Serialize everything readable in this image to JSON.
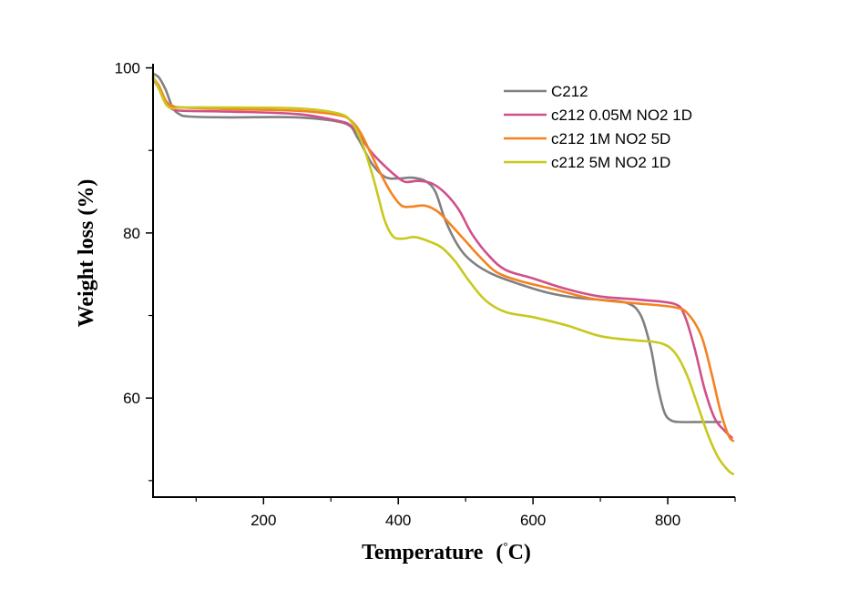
{
  "chart_data": {
    "type": "line",
    "title": "",
    "xlabel": "Temperature (°C)",
    "xlabel_main": "Temperature",
    "xlabel_unit_open": "(",
    "xlabel_unit_deg": "°",
    "xlabel_unit_rest": "C)",
    "ylabel": "Weight loss (%)",
    "xlim": [
      36,
      900
    ],
    "ylim": [
      48,
      100.5
    ],
    "x_major_ticks": [
      200,
      400,
      600,
      800
    ],
    "x_minor_ticks": [
      100,
      300,
      500,
      700,
      900
    ],
    "y_major_ticks": [
      60,
      80,
      100
    ],
    "y_minor_ticks": [
      50,
      70,
      90
    ],
    "x_tick_labels": [
      "200",
      "400",
      "600",
      "800"
    ],
    "y_tick_labels": [
      "60",
      "80",
      "100"
    ],
    "grid": false,
    "legend_position": "top-right",
    "series": [
      {
        "name": "C212",
        "color": "#808080",
        "points": [
          [
            36,
            99.3
          ],
          [
            45,
            98.8
          ],
          [
            55,
            97.3
          ],
          [
            65,
            95.2
          ],
          [
            75,
            94.4
          ],
          [
            90,
            94.1
          ],
          [
            150,
            94.0
          ],
          [
            250,
            94.0
          ],
          [
            320,
            93.3
          ],
          [
            340,
            91.5
          ],
          [
            360,
            88.5
          ],
          [
            380,
            86.8
          ],
          [
            400,
            86.6
          ],
          [
            420,
            86.7
          ],
          [
            440,
            86.3
          ],
          [
            455,
            85.0
          ],
          [
            470,
            81.5
          ],
          [
            490,
            78.3
          ],
          [
            510,
            76.5
          ],
          [
            540,
            75.0
          ],
          [
            580,
            73.8
          ],
          [
            620,
            72.8
          ],
          [
            660,
            72.2
          ],
          [
            700,
            71.9
          ],
          [
            740,
            71.5
          ],
          [
            760,
            70.0
          ],
          [
            775,
            66.0
          ],
          [
            785,
            61.5
          ],
          [
            795,
            58.3
          ],
          [
            805,
            57.3
          ],
          [
            820,
            57.1
          ],
          [
            850,
            57.1
          ],
          [
            878,
            57.1
          ]
        ]
      },
      {
        "name": "c212 0.05M NO2 1D",
        "color": "#d0508a",
        "points": [
          [
            36,
            98.6
          ],
          [
            45,
            97.5
          ],
          [
            55,
            95.8
          ],
          [
            65,
            95.0
          ],
          [
            80,
            94.8
          ],
          [
            150,
            94.7
          ],
          [
            250,
            94.4
          ],
          [
            310,
            93.6
          ],
          [
            330,
            93.0
          ],
          [
            345,
            91.5
          ],
          [
            360,
            89.8
          ],
          [
            375,
            88.5
          ],
          [
            395,
            87.0
          ],
          [
            410,
            86.2
          ],
          [
            430,
            86.3
          ],
          [
            450,
            86.0
          ],
          [
            470,
            84.8
          ],
          [
            490,
            82.8
          ],
          [
            510,
            79.8
          ],
          [
            535,
            77.2
          ],
          [
            560,
            75.5
          ],
          [
            600,
            74.5
          ],
          [
            650,
            73.2
          ],
          [
            700,
            72.3
          ],
          [
            760,
            71.9
          ],
          [
            810,
            71.4
          ],
          [
            825,
            70.0
          ],
          [
            840,
            66.0
          ],
          [
            855,
            61.0
          ],
          [
            870,
            57.5
          ],
          [
            885,
            56.0
          ],
          [
            895,
            55.2
          ]
        ]
      },
      {
        "name": "c212 1M NO2 5D",
        "color": "#f58220",
        "points": [
          [
            36,
            98.8
          ],
          [
            45,
            97.8
          ],
          [
            55,
            96.0
          ],
          [
            65,
            95.4
          ],
          [
            80,
            95.2
          ],
          [
            150,
            95.0
          ],
          [
            250,
            94.8
          ],
          [
            310,
            94.3
          ],
          [
            330,
            93.6
          ],
          [
            345,
            92.0
          ],
          [
            360,
            89.5
          ],
          [
            375,
            87.0
          ],
          [
            390,
            84.8
          ],
          [
            405,
            83.3
          ],
          [
            420,
            83.2
          ],
          [
            440,
            83.3
          ],
          [
            460,
            82.5
          ],
          [
            480,
            80.8
          ],
          [
            500,
            79.0
          ],
          [
            520,
            77.2
          ],
          [
            545,
            75.3
          ],
          [
            580,
            74.2
          ],
          [
            630,
            73.2
          ],
          [
            690,
            72.0
          ],
          [
            750,
            71.5
          ],
          [
            810,
            71.0
          ],
          [
            830,
            70.2
          ],
          [
            850,
            67.5
          ],
          [
            865,
            63.0
          ],
          [
            878,
            58.5
          ],
          [
            890,
            55.5
          ],
          [
            897,
            54.8
          ]
        ]
      },
      {
        "name": "c212 5M NO2 1D",
        "color": "#c8c81e",
        "points": [
          [
            36,
            99.0
          ],
          [
            45,
            97.4
          ],
          [
            55,
            95.6
          ],
          [
            65,
            95.1
          ],
          [
            80,
            95.2
          ],
          [
            150,
            95.2
          ],
          [
            250,
            95.1
          ],
          [
            310,
            94.5
          ],
          [
            330,
            93.5
          ],
          [
            345,
            91.2
          ],
          [
            360,
            87.5
          ],
          [
            370,
            84.5
          ],
          [
            380,
            81.5
          ],
          [
            392,
            79.6
          ],
          [
            405,
            79.3
          ],
          [
            425,
            79.5
          ],
          [
            445,
            79.0
          ],
          [
            465,
            78.2
          ],
          [
            485,
            76.5
          ],
          [
            505,
            74.2
          ],
          [
            530,
            71.8
          ],
          [
            560,
            70.4
          ],
          [
            600,
            69.8
          ],
          [
            650,
            68.8
          ],
          [
            700,
            67.5
          ],
          [
            750,
            67.0
          ],
          [
            780,
            66.8
          ],
          [
            800,
            66.3
          ],
          [
            815,
            65.0
          ],
          [
            830,
            62.5
          ],
          [
            845,
            59.0
          ],
          [
            860,
            55.5
          ],
          [
            875,
            52.8
          ],
          [
            890,
            51.2
          ],
          [
            897,
            50.8
          ]
        ]
      }
    ]
  }
}
